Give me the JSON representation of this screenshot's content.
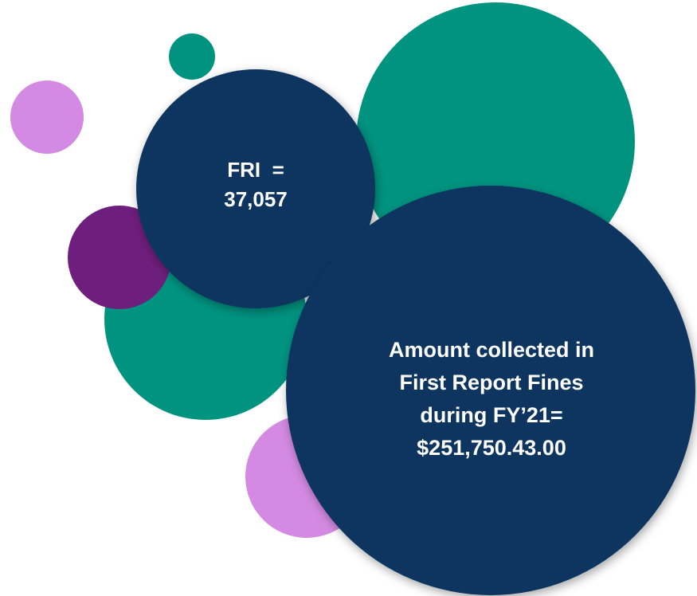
{
  "bubbles": [
    {
      "lines": [
        "FRI  =",
        "37,057"
      ]
    },
    {
      "lines": [
        "Amount collected in",
        "First Report Fines",
        "during FY’21=",
        "$251,750.43.00"
      ]
    }
  ]
}
